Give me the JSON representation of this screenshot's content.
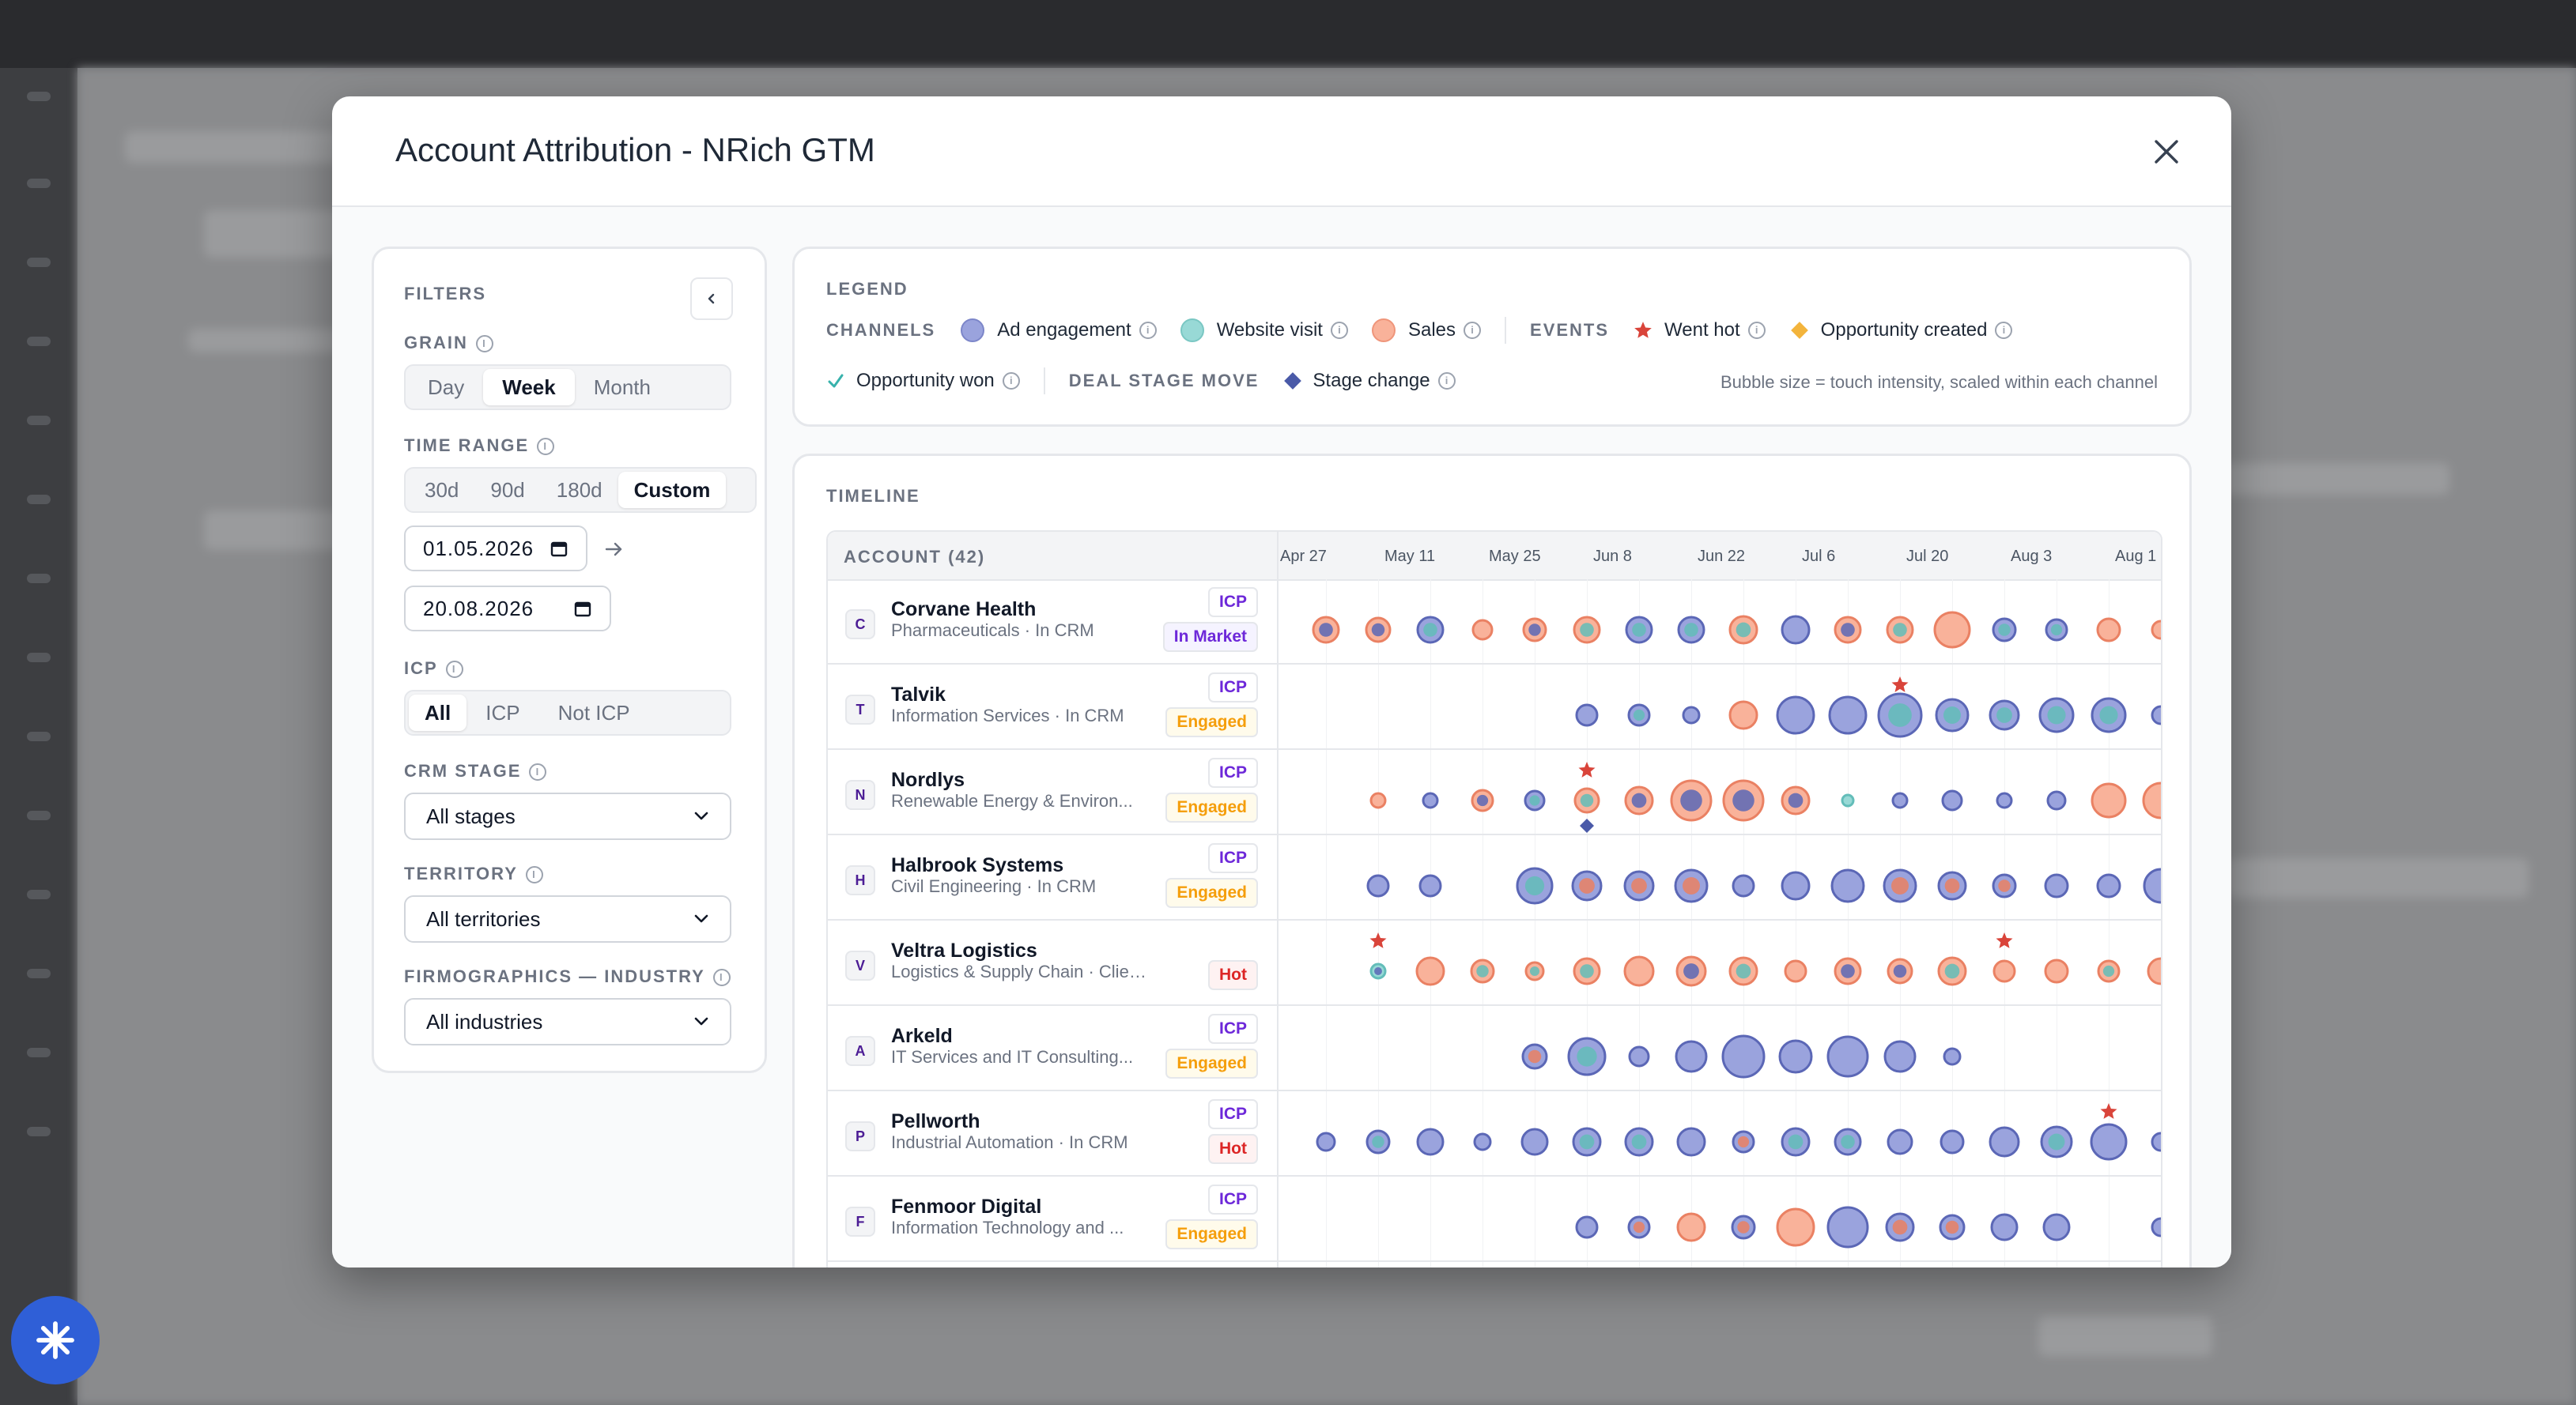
{
  "modal": {
    "title": "Account Attribution - NRich GTM",
    "close_label": "×"
  },
  "filters": {
    "heading": "FILTERS",
    "grain": {
      "label": "GRAIN",
      "options": [
        "Day",
        "Week",
        "Month"
      ],
      "selected": "Week"
    },
    "time_range": {
      "label": "TIME RANGE",
      "options": [
        "30d",
        "90d",
        "180d",
        "Custom"
      ],
      "selected": "Custom",
      "start": "01.05.2026",
      "end": "20.08.2026"
    },
    "icp": {
      "label": "ICP",
      "options": [
        "All",
        "ICP",
        "Not ICP"
      ],
      "selected": "All"
    },
    "crm_stage": {
      "label": "CRM STAGE",
      "value": "All stages"
    },
    "territory": {
      "label": "TERRITORY",
      "value": "All territories"
    },
    "industry": {
      "label": "FIRMOGRAPHICS — INDUSTRY",
      "value": "All industries"
    }
  },
  "legend": {
    "heading": "LEGEND",
    "channels_label": "CHANNELS",
    "channels": [
      {
        "name": "Ad engagement",
        "color": "#9aa3dd"
      },
      {
        "name": "Website visit",
        "color": "#98d9d6"
      },
      {
        "name": "Sales",
        "color": "#f9b29a"
      }
    ],
    "events_label": "EVENTS",
    "events": [
      {
        "name": "Went hot",
        "icon": "star-icon",
        "color": "#d9443a"
      },
      {
        "name": "Opportunity created",
        "icon": "diamond-icon",
        "color": "#f3b43c"
      },
      {
        "name": "Opportunity won",
        "icon": "check-icon",
        "color": "#38b2ac"
      }
    ],
    "deal_stage_label": "DEAL STAGE MOVE",
    "deal_stage": {
      "name": "Stage change",
      "icon": "diamond-icon",
      "color": "#4a5aa8"
    },
    "note": "Bubble size = touch intensity, scaled within each channel"
  },
  "timeline": {
    "heading": "TIMELINE",
    "account_header": "ACCOUNT (42)",
    "weeks": [
      "Apr 27",
      "May 11",
      "May 25",
      "Jun 8",
      "Jun 22",
      "Jul 6",
      "Jul 20",
      "Aug 3",
      "Aug 1"
    ],
    "accounts": [
      {
        "initial": "C",
        "name": "Corvane Health",
        "sub": "Pharmaceuticals · In CRM",
        "tags": [
          [
            "ICP",
            "icp"
          ],
          [
            "In Market",
            "market"
          ]
        ],
        "bubbles": [
          [
            0,
            "s",
            "a",
            16
          ],
          [
            1,
            "s",
            "a",
            15
          ],
          [
            2,
            "a",
            "w",
            16
          ],
          [
            3,
            "s",
            "s",
            12
          ],
          [
            4,
            "s",
            "a",
            14
          ],
          [
            5,
            "s",
            "w",
            16
          ],
          [
            6,
            "a",
            "w",
            16
          ],
          [
            7,
            "a",
            "w",
            16
          ],
          [
            8,
            "s",
            "w",
            17
          ],
          [
            9,
            "a",
            "a",
            17
          ],
          [
            10,
            "s",
            "a",
            16
          ],
          [
            11,
            "s",
            "w",
            16
          ],
          [
            12,
            "s",
            "s",
            22
          ],
          [
            13,
            "a",
            "w",
            14
          ],
          [
            14,
            "a",
            "w",
            13
          ],
          [
            15,
            "s",
            "s",
            14
          ],
          [
            16,
            "s",
            "s",
            11
          ]
        ],
        "events": []
      },
      {
        "initial": "T",
        "name": "Talvik",
        "sub": "Information Services · In CRM",
        "tags": [
          [
            "ICP",
            "icp"
          ],
          [
            "Engaged",
            "engaged"
          ]
        ],
        "bubbles": [
          [
            5,
            "a",
            "a",
            13
          ],
          [
            6,
            "a",
            "w",
            13
          ],
          [
            7,
            "a",
            "a",
            10
          ],
          [
            8,
            "s",
            "s",
            17
          ],
          [
            9,
            "a",
            "a",
            23
          ],
          [
            10,
            "a",
            "a",
            23
          ],
          [
            11,
            "a",
            "w",
            27
          ],
          [
            12,
            "a",
            "w",
            20
          ],
          [
            13,
            "a",
            "w",
            18
          ],
          [
            14,
            "a",
            "w",
            21
          ],
          [
            15,
            "a",
            "w",
            21
          ],
          [
            16,
            "a",
            "a",
            11
          ]
        ],
        "events": [
          [
            11,
            "star"
          ]
        ]
      },
      {
        "initial": "N",
        "name": "Nordlys",
        "sub": "Renewable Energy & Environ...",
        "tags": [
          [
            "ICP",
            "icp"
          ],
          [
            "Engaged",
            "engaged"
          ]
        ],
        "bubbles": [
          [
            1,
            "s",
            "s",
            9
          ],
          [
            2,
            "a",
            "a",
            9
          ],
          [
            3,
            "s",
            "a",
            13
          ],
          [
            4,
            "a",
            "w",
            12
          ],
          [
            5,
            "s",
            "w",
            15
          ],
          [
            6,
            "s",
            "a",
            17
          ],
          [
            7,
            "s",
            "a",
            25
          ],
          [
            8,
            "s",
            "a",
            25
          ],
          [
            9,
            "s",
            "a",
            17
          ],
          [
            10,
            "w",
            "w",
            7
          ],
          [
            11,
            "a",
            "a",
            9
          ],
          [
            12,
            "a",
            "a",
            12
          ],
          [
            13,
            "a",
            "a",
            9
          ],
          [
            14,
            "a",
            "a",
            11
          ],
          [
            15,
            "s",
            "s",
            21
          ],
          [
            16,
            "s",
            "s",
            22
          ]
        ],
        "events": [
          [
            5,
            "star"
          ],
          [
            5,
            "diamond"
          ]
        ]
      },
      {
        "initial": "H",
        "name": "Halbrook Systems",
        "sub": "Civil Engineering · In CRM",
        "tags": [
          [
            "ICP",
            "icp"
          ],
          [
            "Engaged",
            "engaged"
          ]
        ],
        "bubbles": [
          [
            1,
            "a",
            "a",
            13
          ],
          [
            2,
            "a",
            "a",
            13
          ],
          [
            4,
            "a",
            "w",
            22
          ],
          [
            5,
            "a",
            "s",
            18
          ],
          [
            6,
            "a",
            "s",
            18
          ],
          [
            7,
            "a",
            "s",
            20
          ],
          [
            8,
            "a",
            "a",
            13
          ],
          [
            9,
            "a",
            "a",
            17
          ],
          [
            10,
            "a",
            "a",
            20
          ],
          [
            11,
            "a",
            "s",
            20
          ],
          [
            12,
            "a",
            "s",
            17
          ],
          [
            13,
            "a",
            "s",
            14
          ],
          [
            14,
            "a",
            "a",
            14
          ],
          [
            15,
            "a",
            "a",
            14
          ],
          [
            16,
            "a",
            "a",
            21
          ]
        ],
        "events": []
      },
      {
        "initial": "V",
        "name": "Veltra Logistics",
        "sub": "Logistics & Supply Chain · Client P...",
        "tags": [
          [
            "Hot",
            "hot"
          ]
        ],
        "bubbles": [
          [
            1,
            "w",
            "a",
            9
          ],
          [
            2,
            "s",
            "s",
            17
          ],
          [
            3,
            "s",
            "w",
            14
          ],
          [
            4,
            "s",
            "w",
            11
          ],
          [
            5,
            "s",
            "w",
            16
          ],
          [
            6,
            "s",
            "s",
            18
          ],
          [
            7,
            "s",
            "a",
            18
          ],
          [
            8,
            "s",
            "w",
            17
          ],
          [
            9,
            "s",
            "s",
            13
          ],
          [
            10,
            "s",
            "a",
            16
          ],
          [
            11,
            "s",
            "a",
            15
          ],
          [
            12,
            "s",
            "w",
            17
          ],
          [
            13,
            "s",
            "s",
            13
          ],
          [
            14,
            "s",
            "s",
            14
          ],
          [
            15,
            "s",
            "w",
            13
          ],
          [
            16,
            "s",
            "s",
            16
          ]
        ],
        "events": [
          [
            1,
            "star"
          ],
          [
            13,
            "star"
          ]
        ]
      },
      {
        "initial": "A",
        "name": "Arkeld",
        "sub": "IT Services and IT Consulting...",
        "tags": [
          [
            "ICP",
            "icp"
          ],
          [
            "Engaged",
            "engaged"
          ]
        ],
        "bubbles": [
          [
            4,
            "a",
            "s",
            15
          ],
          [
            5,
            "a",
            "w",
            23
          ],
          [
            6,
            "a",
            "a",
            12
          ],
          [
            7,
            "a",
            "a",
            19
          ],
          [
            8,
            "a",
            "a",
            26
          ],
          [
            9,
            "a",
            "a",
            20
          ],
          [
            10,
            "a",
            "a",
            25
          ],
          [
            11,
            "a",
            "a",
            19
          ],
          [
            12,
            "a",
            "a",
            10
          ]
        ],
        "events": []
      },
      {
        "initial": "P",
        "name": "Pellworth",
        "sub": "Industrial Automation · In CRM",
        "tags": [
          [
            "ICP",
            "icp"
          ],
          [
            "Hot",
            "hot"
          ]
        ],
        "bubbles": [
          [
            0,
            "a",
            "a",
            11
          ],
          [
            1,
            "a",
            "w",
            14
          ],
          [
            2,
            "a",
            "a",
            16
          ],
          [
            3,
            "a",
            "a",
            10
          ],
          [
            4,
            "a",
            "a",
            16
          ],
          [
            5,
            "a",
            "w",
            17
          ],
          [
            6,
            "a",
            "w",
            17
          ],
          [
            7,
            "a",
            "a",
            17
          ],
          [
            8,
            "a",
            "s",
            13
          ],
          [
            9,
            "a",
            "w",
            17
          ],
          [
            10,
            "a",
            "w",
            16
          ],
          [
            11,
            "a",
            "a",
            15
          ],
          [
            12,
            "a",
            "a",
            14
          ],
          [
            13,
            "a",
            "a",
            18
          ],
          [
            14,
            "a",
            "w",
            19
          ],
          [
            15,
            "a",
            "a",
            22
          ],
          [
            16,
            "a",
            "a",
            11
          ]
        ],
        "events": [
          [
            15,
            "star"
          ]
        ]
      },
      {
        "initial": "F",
        "name": "Fenmoor Digital",
        "sub": "Information Technology and ...",
        "tags": [
          [
            "ICP",
            "icp"
          ],
          [
            "Engaged",
            "engaged"
          ]
        ],
        "bubbles": [
          [
            5,
            "a",
            "a",
            13
          ],
          [
            6,
            "a",
            "s",
            13
          ],
          [
            7,
            "s",
            "s",
            17
          ],
          [
            8,
            "a",
            "s",
            14
          ],
          [
            9,
            "s",
            "s",
            23
          ],
          [
            10,
            "a",
            "a",
            25
          ],
          [
            11,
            "a",
            "s",
            17
          ],
          [
            12,
            "a",
            "s",
            15
          ],
          [
            13,
            "a",
            "a",
            16
          ],
          [
            14,
            "a",
            "a",
            16
          ],
          [
            16,
            "a",
            "a",
            11
          ]
        ],
        "events": []
      }
    ]
  }
}
